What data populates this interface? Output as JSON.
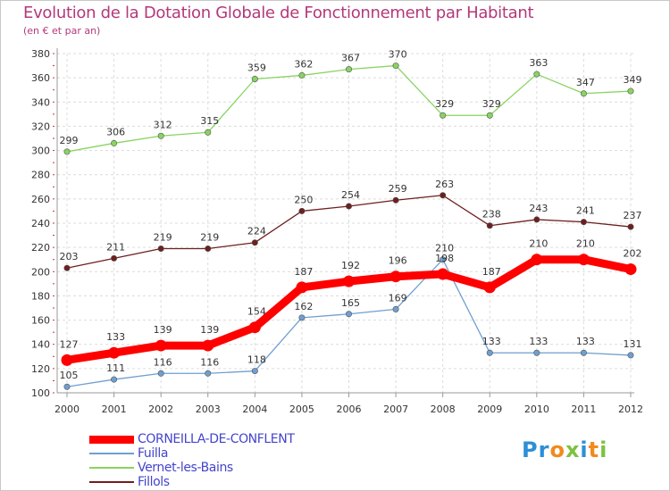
{
  "title": "Evolution de la Dotation Globale de Fonctionnement par Habitant",
  "subtitle": "(en € et par an)",
  "logo": {
    "letters": [
      {
        "char": "P",
        "color": "#2d8fd6"
      },
      {
        "char": "r",
        "color": "#2d8fd6"
      },
      {
        "char": "o",
        "color": "#f28a1c"
      },
      {
        "char": "x",
        "color": "#7cc242"
      },
      {
        "char": "i",
        "color": "#2d8fd6"
      },
      {
        "char": "t",
        "color": "#f28a1c"
      },
      {
        "char": "i",
        "color": "#7cc242"
      }
    ]
  },
  "chart_data": {
    "type": "line",
    "title": "Evolution de la Dotation Globale de Fonctionnement par Habitant",
    "subtitle": "(en € et par an)",
    "x": [
      "2000",
      "2001",
      "2002",
      "2003",
      "2004",
      "2005",
      "2006",
      "2007",
      "2008",
      "2009",
      "2010",
      "2011",
      "2012"
    ],
    "ylim": [
      100,
      380
    ],
    "yticks": [
      100,
      120,
      140,
      160,
      180,
      200,
      220,
      240,
      260,
      280,
      300,
      320,
      340,
      360,
      380
    ],
    "grid": true,
    "legend_position": "bottom-left",
    "series": [
      {
        "name": "CORNEILLA-DE-CONFLENT",
        "color": "#ff0000",
        "values": [
          127,
          133,
          139,
          139,
          154,
          187,
          192,
          196,
          198,
          187,
          210,
          210,
          202
        ]
      },
      {
        "name": "Fuilla",
        "color": "#6f9fd0",
        "values": [
          105,
          111,
          116,
          116,
          118,
          162,
          165,
          169,
          210,
          133,
          133,
          133,
          131
        ]
      },
      {
        "name": "Vernet-les-Bains",
        "color": "#88d460",
        "values": [
          299,
          306,
          312,
          315,
          359,
          362,
          367,
          370,
          329,
          329,
          363,
          347,
          349
        ]
      },
      {
        "name": "Fillols",
        "color": "#6e1f1f",
        "values": [
          203,
          211,
          219,
          219,
          224,
          250,
          254,
          259,
          263,
          238,
          243,
          241,
          237
        ]
      }
    ]
  }
}
